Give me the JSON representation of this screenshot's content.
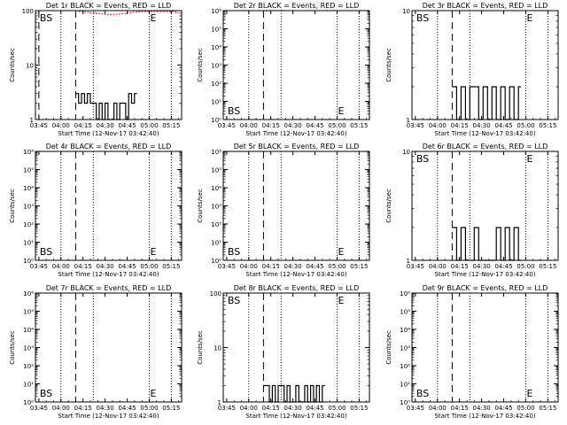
{
  "page": {
    "x_ticks": [
      "03:45",
      "04:00",
      "04:15",
      "04:30",
      "04:45",
      "05:00",
      "05:15"
    ],
    "x_label": "Start Time (12-Nov-17 03:42:40)",
    "y_label": "Counts/sec"
  },
  "chart_data": [
    {
      "type": "line",
      "title": "Det 1r BLACK = Events, RED = LLD",
      "y_scale": "log",
      "ylim": [
        1,
        100
      ],
      "yticks": [
        "1",
        "10",
        "100"
      ],
      "xlabel": "Start Time (12-Nov-17 03:42:40)",
      "ylabel": "Counts/sec",
      "x_ticks": [
        "03:45",
        "04:00",
        "04:15",
        "04:30",
        "04:45",
        "05:00",
        "05:15"
      ],
      "markers": [
        {
          "label": "BS",
          "x": "03:45"
        },
        {
          "label": "E",
          "x": "05:00"
        }
      ],
      "dashed_x": [
        "03:45",
        "04:10"
      ],
      "dotted_x": [
        "04:00",
        "04:22",
        "05:00",
        "05:15"
      ],
      "series": [
        {
          "color": "#000000",
          "x": [
            "04:10",
            "04:12",
            "04:14",
            "04:16",
            "04:18",
            "04:20",
            "04:22",
            "04:24",
            "04:26",
            "04:28",
            "04:30",
            "04:32",
            "04:34",
            "04:36",
            "04:38",
            "04:40",
            "04:42",
            "04:44",
            "04:46",
            "04:48",
            "04:50"
          ],
          "values": [
            3,
            2,
            3,
            2,
            3,
            2,
            2,
            1,
            2,
            1,
            2,
            1,
            1,
            2,
            1,
            2,
            2,
            1,
            3,
            2,
            3
          ]
        },
        {
          "color": "#ff0000",
          "x": [
            "04:12",
            "04:16",
            "04:20",
            "04:24",
            "04:28",
            "04:32",
            "04:36",
            "04:40",
            "04:44",
            "04:48",
            "04:52",
            "05:14",
            "05:18"
          ],
          "values": [
            96,
            94,
            92,
            88,
            86,
            85,
            86,
            88,
            92,
            94,
            96,
            96,
            92
          ]
        }
      ]
    },
    {
      "type": "line",
      "title": "Det 2r BLACK = Events, RED = LLD",
      "y_scale": "log",
      "ylim": [
        1,
        1000000
      ],
      "yticks": [
        "10⁰",
        "10¹",
        "10²",
        "10³",
        "10⁴",
        "10⁵",
        "10⁶"
      ],
      "xlabel": "Start Time (12-Nov-17 03:42:40)",
      "ylabel": "Counts/sec",
      "x_ticks": [
        "03:45",
        "04:00",
        "04:15",
        "04:30",
        "04:45",
        "05:00",
        "05:15"
      ],
      "markers": [
        {
          "label": "BS",
          "x": "03:45"
        },
        {
          "label": "E",
          "x": "05:00"
        }
      ],
      "dashed_x": [
        "04:10"
      ],
      "dotted_x": [
        "04:00",
        "04:22",
        "05:00",
        "05:15"
      ],
      "series": []
    },
    {
      "type": "line",
      "title": "Det 3r BLACK = Events, RED = LLD",
      "y_scale": "log",
      "ylim": [
        1,
        10
      ],
      "yticks": [
        "1",
        "10"
      ],
      "xlabel": "Start Time (12-Nov-17 03:42:40)",
      "ylabel": "Counts/sec",
      "x_ticks": [
        "03:45",
        "04:00",
        "04:15",
        "04:30",
        "04:45",
        "05:00",
        "05:15"
      ],
      "markers": [
        {
          "label": "BS",
          "x": "03:45"
        },
        {
          "label": "E",
          "x": "05:00"
        }
      ],
      "dashed_x": [
        "04:10"
      ],
      "dotted_x": [
        "04:00",
        "04:22",
        "05:00",
        "05:15"
      ],
      "series": [
        {
          "color": "#000000",
          "x": [
            "04:10",
            "04:13",
            "04:16",
            "04:19",
            "04:22",
            "04:25",
            "04:28",
            "04:31",
            "04:34",
            "04:37",
            "04:40",
            "04:43",
            "04:46",
            "04:49",
            "04:52",
            "04:55"
          ],
          "values": [
            2,
            1,
            2,
            1,
            2,
            2,
            1,
            2,
            1,
            2,
            1,
            2,
            1,
            2,
            1,
            2
          ]
        }
      ]
    },
    {
      "type": "line",
      "title": "Det 4r BLACK = Events, RED = LLD",
      "y_scale": "log",
      "ylim": [
        1,
        1000000
      ],
      "yticks": [
        "10⁰",
        "10¹",
        "10²",
        "10³",
        "10⁴",
        "10⁵",
        "10⁶"
      ],
      "xlabel": "Start Time (12-Nov-17 03:42:40)",
      "ylabel": "Counts/sec",
      "x_ticks": [
        "03:45",
        "04:00",
        "04:15",
        "04:30",
        "04:45",
        "05:00",
        "05:15"
      ],
      "markers": [
        {
          "label": "BS",
          "x": "03:45"
        },
        {
          "label": "E",
          "x": "05:00"
        }
      ],
      "dashed_x": [
        "04:10"
      ],
      "dotted_x": [
        "04:00",
        "04:22",
        "05:00",
        "05:15"
      ],
      "series": []
    },
    {
      "type": "line",
      "title": "Det 5r BLACK = Events, RED = LLD",
      "y_scale": "log",
      "ylim": [
        1,
        1000000
      ],
      "yticks": [
        "10⁰",
        "10¹",
        "10²",
        "10³",
        "10⁴",
        "10⁵",
        "10⁶"
      ],
      "xlabel": "Start Time (12-Nov-17 03:42:40)",
      "ylabel": "Counts/sec",
      "x_ticks": [
        "03:45",
        "04:00",
        "04:15",
        "04:30",
        "04:45",
        "05:00",
        "05:15"
      ],
      "markers": [
        {
          "label": "BS",
          "x": "03:45"
        },
        {
          "label": "E",
          "x": "05:00"
        }
      ],
      "dashed_x": [
        "04:10"
      ],
      "dotted_x": [
        "04:00",
        "04:22",
        "05:00",
        "05:15"
      ],
      "series": []
    },
    {
      "type": "line",
      "title": "Det 6r BLACK = Events, RED = LLD",
      "y_scale": "log",
      "ylim": [
        1,
        10
      ],
      "yticks": [
        "1",
        "10"
      ],
      "xlabel": "Start Time (12-Nov-17 03:42:40)",
      "ylabel": "Counts/sec",
      "x_ticks": [
        "03:45",
        "04:00",
        "04:15",
        "04:30",
        "04:45",
        "05:00",
        "05:15"
      ],
      "markers": [
        {
          "label": "BS",
          "x": "03:45"
        },
        {
          "label": "E",
          "x": "05:00"
        }
      ],
      "dashed_x": [
        "04:10"
      ],
      "dotted_x": [
        "04:00",
        "04:22",
        "05:00",
        "05:15"
      ],
      "series": [
        {
          "color": "#000000",
          "x": [
            "04:10",
            "04:13",
            "04:16",
            "04:19",
            "04:22",
            "04:25",
            "04:28",
            "04:31",
            "04:34",
            "04:37",
            "04:40",
            "04:43",
            "04:46",
            "04:49",
            "04:52",
            "04:55"
          ],
          "values": [
            2,
            1,
            2,
            1,
            1,
            2,
            1,
            1,
            1,
            1,
            2,
            1,
            2,
            1,
            2,
            1
          ]
        }
      ]
    },
    {
      "type": "line",
      "title": "Det 7r BLACK = Events, RED = LLD",
      "y_scale": "log",
      "ylim": [
        1,
        1000000
      ],
      "yticks": [
        "10⁰",
        "10¹",
        "10²",
        "10³",
        "10⁴",
        "10⁵",
        "10⁶"
      ],
      "xlabel": "Start Time (12-Nov-17 03:42:40)",
      "ylabel": "Counts/sec",
      "x_ticks": [
        "03:45",
        "04:00",
        "04:15",
        "04:30",
        "04:45",
        "05:00",
        "05:15"
      ],
      "markers": [
        {
          "label": "BS",
          "x": "03:45"
        },
        {
          "label": "E",
          "x": "05:00"
        }
      ],
      "dashed_x": [
        "04:10"
      ],
      "dotted_x": [
        "04:00",
        "04:22",
        "05:00",
        "05:15"
      ],
      "series": []
    },
    {
      "type": "line",
      "title": "Det 8r BLACK = Events, RED = LLD",
      "y_scale": "log",
      "ylim": [
        1,
        100
      ],
      "yticks": [
        "1",
        "10",
        "100"
      ],
      "xlabel": "Start Time (12-Nov-17 03:42:40)",
      "ylabel": "Counts/sec",
      "x_ticks": [
        "03:45",
        "04:00",
        "04:15",
        "04:30",
        "04:45",
        "05:00",
        "05:15"
      ],
      "markers": [
        {
          "label": "BS",
          "x": "03:45"
        },
        {
          "label": "E",
          "x": "05:00"
        }
      ],
      "dashed_x": [
        "04:10"
      ],
      "dotted_x": [
        "04:00",
        "04:22",
        "05:00",
        "05:15"
      ],
      "series": [
        {
          "color": "#000000",
          "x": [
            "04:10",
            "04:12",
            "04:14",
            "04:16",
            "04:18",
            "04:20",
            "04:22",
            "04:24",
            "04:26",
            "04:28",
            "04:30",
            "04:32",
            "04:34",
            "04:36",
            "04:38",
            "04:40",
            "04:42",
            "04:44",
            "04:46",
            "04:48",
            "04:50"
          ],
          "values": [
            2,
            2,
            1,
            2,
            1,
            2,
            2,
            1,
            2,
            1,
            1,
            2,
            1,
            1,
            2,
            1,
            2,
            1,
            2,
            1,
            2
          ]
        }
      ]
    },
    {
      "type": "line",
      "title": "Det 9r BLACK = Events, RED = LLD",
      "y_scale": "log",
      "ylim": [
        1,
        1000000
      ],
      "yticks": [
        "10⁰",
        "10¹",
        "10²",
        "10³",
        "10⁴",
        "10⁵",
        "10⁶"
      ],
      "xlabel": "Start Time (12-Nov-17 03:42:40)",
      "ylabel": "Counts/sec",
      "x_ticks": [
        "03:45",
        "04:00",
        "04:15",
        "04:30",
        "04:45",
        "05:00",
        "05:15"
      ],
      "markers": [
        {
          "label": "BS",
          "x": "03:45"
        },
        {
          "label": "E",
          "x": "05:00"
        }
      ],
      "dashed_x": [
        "04:10"
      ],
      "dotted_x": [
        "04:00",
        "04:22",
        "05:00",
        "05:15"
      ],
      "series": []
    }
  ]
}
